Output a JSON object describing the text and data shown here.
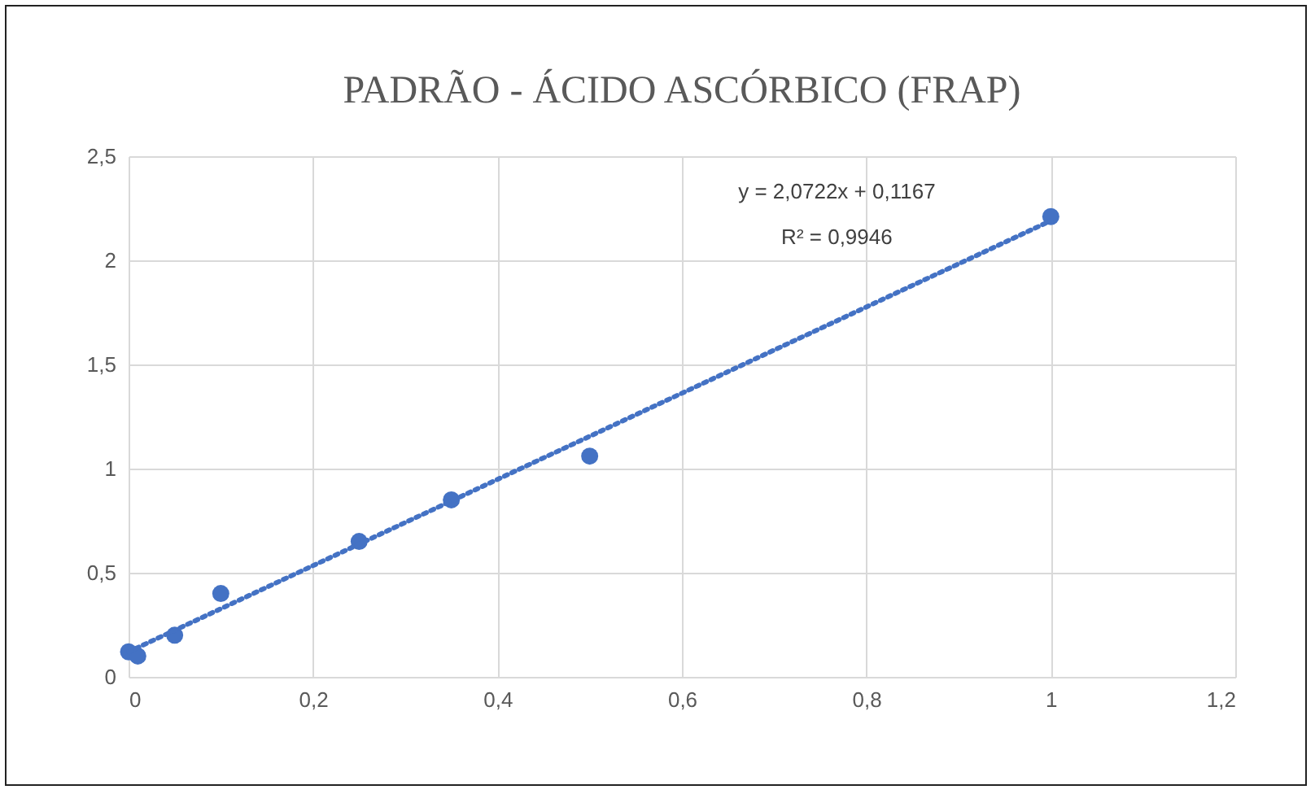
{
  "chart_data": {
    "type": "scatter",
    "title": "PADRÃO - ÁCIDO ASCÓRBICO (FRAP)",
    "series": [
      {
        "color": "#4472c4",
        "marker": "circle",
        "x": [
          0,
          0.01,
          0.05,
          0.1,
          0.25,
          0.35,
          0.5,
          1
        ],
        "values": [
          0.12,
          0.1,
          0.2,
          0.4,
          0.65,
          0.85,
          1.06,
          2.21
        ]
      },
      {
        "type": "line",
        "color": "#4472c4",
        "line_style": "dotted",
        "marker": "none",
        "x": [
          0,
          1
        ],
        "values": [
          0.12,
          2.19
        ]
      }
    ],
    "annotations": [
      "y = 2,0722x + 0,1167",
      "R² = 0,9946"
    ],
    "xlim": [
      0,
      1.2
    ],
    "xticks": [
      0,
      {
        "value": 0.2,
        "label": "0,2"
      },
      {
        "value": 0.4,
        "label": "0,4"
      },
      {
        "value": 0.6,
        "label": "0,6"
      },
      {
        "value": 0.8,
        "label": "0,8"
      },
      1,
      {
        "value": 1.2,
        "label": "1,2"
      }
    ],
    "ylim": [
      0,
      2.5
    ],
    "yticks": [
      0,
      {
        "value": 0.5,
        "label": "0,5"
      },
      1,
      {
        "value": 1.5,
        "label": "1,5"
      },
      2,
      {
        "value": 2.5,
        "label": "2,5"
      }
    ],
    "grid": true
  }
}
